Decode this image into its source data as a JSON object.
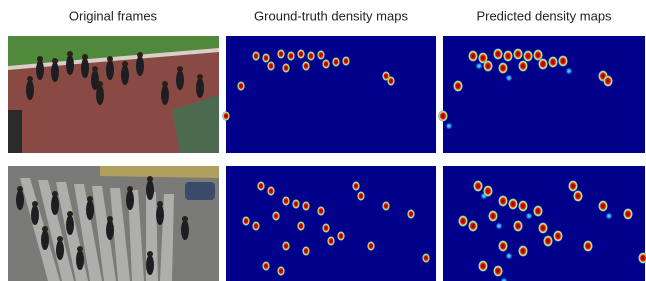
{
  "columns": [
    "Original frames",
    "Ground-truth density maps",
    "Predicted density maps"
  ]
}
